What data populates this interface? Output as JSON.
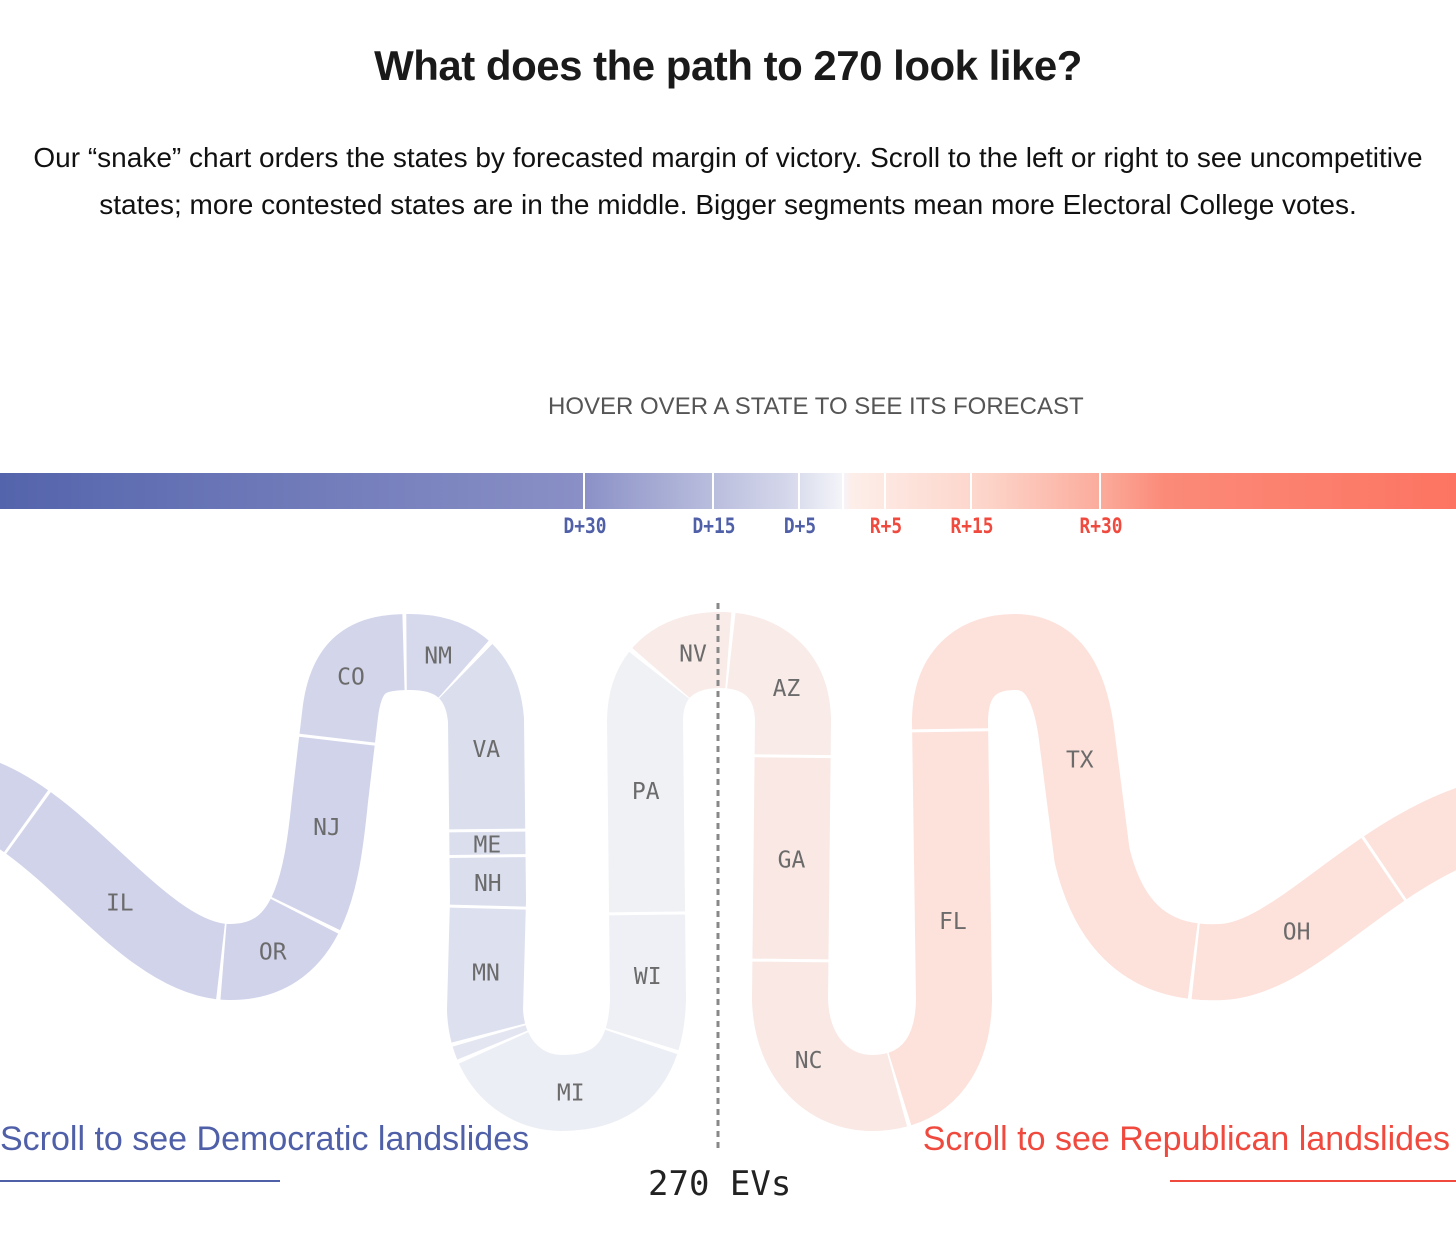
{
  "title": "What does the path to 270 look like?",
  "description": "Our “snake” chart orders the states by forecasted margin of victory. Scroll to the left or right to see uncompetitive states; more contested states are in the middle. Bigger segments mean more Electoral College votes.",
  "hover_prompt": "HOVER OVER A STATE TO SEE ITS FORECAST",
  "colors": {
    "dem": "#4f5fa8",
    "rep": "#f0493e"
  },
  "chart_data": {
    "type": "snake",
    "scale_ticks": [
      {
        "label": "D+30",
        "party": "dem"
      },
      {
        "label": "D+15",
        "party": "dem"
      },
      {
        "label": "D+5",
        "party": "dem"
      },
      {
        "label": "R+5",
        "party": "rep"
      },
      {
        "label": "R+15",
        "party": "rep"
      },
      {
        "label": "R+30",
        "party": "rep"
      }
    ],
    "segments": [
      {
        "state": "",
        "ev": 6,
        "color": "#d0d3ea"
      },
      {
        "state": "IL",
        "ev": 19,
        "color": "#d0d3ea"
      },
      {
        "state": "OR",
        "ev": 8,
        "color": "#d0d3ea"
      },
      {
        "state": "NJ",
        "ev": 14,
        "color": "#d0d3ea"
      },
      {
        "state": "CO",
        "ev": 10,
        "color": "#d3d6eb"
      },
      {
        "state": "NM",
        "ev": 5,
        "color": "#d6d9ec"
      },
      {
        "state": "VA",
        "ev": 13,
        "color": "#dadeed"
      },
      {
        "state": "ME",
        "ev": 2,
        "color": "#dadeed"
      },
      {
        "state": "NH",
        "ev": 4,
        "color": "#dadeed"
      },
      {
        "state": "MN",
        "ev": 10,
        "color": "#dde0ee"
      },
      {
        "state": "",
        "ev": 1,
        "color": "#e3e6f1"
      },
      {
        "state": "MI",
        "ev": 15,
        "color": "#eceef5"
      },
      {
        "state": "WI",
        "ev": 10,
        "color": "#eef0f5"
      },
      {
        "state": "PA",
        "ev": 19,
        "color": "#f0f1f5"
      },
      {
        "state": "NV",
        "ev": 6,
        "color": "#f8ebe8"
      },
      {
        "state": "AZ",
        "ev": 11,
        "color": "#f8ebe8"
      },
      {
        "state": "GA",
        "ev": 16,
        "color": "#f9e8e4"
      },
      {
        "state": "NC",
        "ev": 16,
        "color": "#f9e8e4"
      },
      {
        "state": "FL",
        "ev": 30,
        "color": "#fde1db"
      },
      {
        "state": "TX",
        "ev": 40,
        "color": "#fde1db"
      },
      {
        "state": "OH",
        "ev": 17,
        "color": "#fde1db"
      },
      {
        "state": "",
        "ev": 10,
        "color": "#fde1db"
      }
    ],
    "threshold_label": "270 EVs"
  },
  "scroll_left": "Scroll to see Democratic landslides",
  "scroll_right": "Scroll to see Republican landslides"
}
